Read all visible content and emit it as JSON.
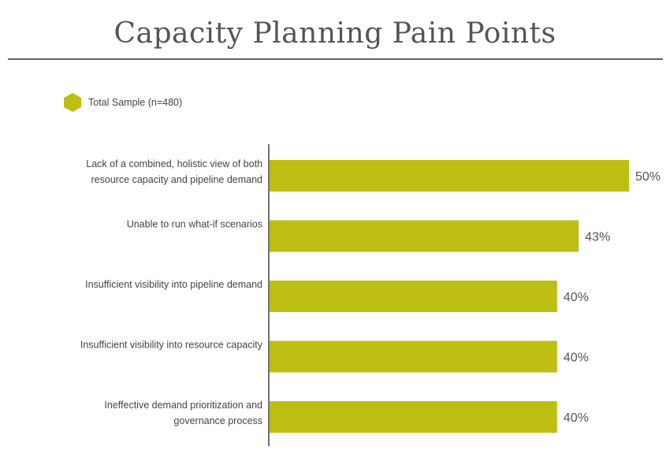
{
  "colors": {
    "accent": "#bcbf12",
    "axis": "#444444",
    "rule": "#666666"
  },
  "chart_data": {
    "type": "bar",
    "orientation": "horizontal",
    "title": "Capacity Planning Pain Points",
    "categories": [
      [
        "Lack of a combined, holistic view of both",
        "resource capacity and pipeline demand"
      ],
      [
        "Unable to run what-if scenarios"
      ],
      [
        "Insufficient visibility into pipeline demand"
      ],
      [
        "Insufficient visibility into resource capacity"
      ],
      [
        "Ineffective demand prioritization and",
        "governance process"
      ]
    ],
    "series": [
      {
        "name": "Total Sample (n=480)",
        "values": [
          50,
          43,
          40,
          40,
          40
        ]
      }
    ],
    "value_labels": [
      "50%",
      "43%",
      "40%",
      "40%",
      "40%"
    ],
    "xlim": [
      0,
      50
    ],
    "legend_position": "top-left",
    "grid": false,
    "legend_icon": "hexagon-icon"
  }
}
